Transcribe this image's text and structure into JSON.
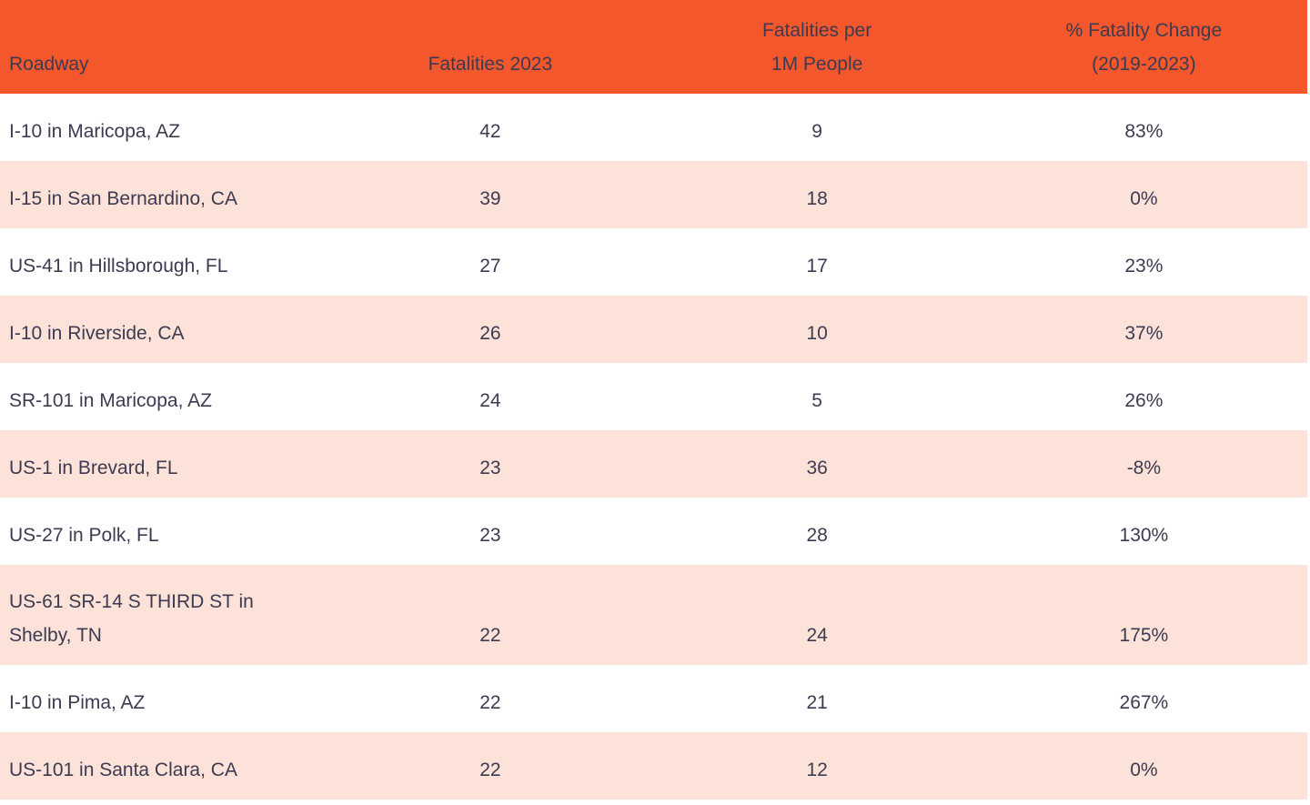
{
  "chart_data": {
    "type": "table",
    "title": "",
    "columns": [
      "Roadway",
      "Fatalities 2023",
      "Fatalities per 1M People",
      "% Fatality Change (2019-2023)"
    ],
    "rows": [
      [
        "I-10 in Maricopa, AZ",
        42,
        9,
        "83%"
      ],
      [
        "I-15 in San Bernardino, CA",
        39,
        18,
        "0%"
      ],
      [
        "US-41 in Hillsborough, FL",
        27,
        17,
        "23%"
      ],
      [
        "I-10 in Riverside, CA",
        26,
        10,
        "37%"
      ],
      [
        "SR-101 in Maricopa, AZ",
        24,
        5,
        "26%"
      ],
      [
        "US-1 in Brevard, FL",
        23,
        36,
        "-8%"
      ],
      [
        "US-27 in Polk, FL",
        23,
        28,
        "130%"
      ],
      [
        "US-61 SR-14 S THIRD ST in Shelby, TN",
        22,
        24,
        "175%"
      ],
      [
        "I-10 in Pima, AZ",
        22,
        21,
        "267%"
      ],
      [
        "US-101 in Santa Clara, CA",
        22,
        12,
        "0%"
      ]
    ],
    "layout": {
      "zebra_striping": true,
      "first_data_row_background": "white",
      "alternate_row_background": "light peach",
      "header_background": "orange"
    }
  },
  "table": {
    "columns": [
      {
        "id": "roadway",
        "lines": [
          "Roadway"
        ],
        "align": "left"
      },
      {
        "id": "fatalities_2023",
        "lines": [
          "Fatalities 2023"
        ],
        "align": "center"
      },
      {
        "id": "fatalities_per_1m",
        "lines": [
          "Fatalities per",
          "1M People"
        ],
        "align": "center"
      },
      {
        "id": "pct_change",
        "lines": [
          "% Fatality Change",
          "(2019-2023)"
        ],
        "align": "center"
      }
    ],
    "colors": {
      "header_bg": "#F4572B",
      "header_text": "#3C3B52",
      "row_bg": "#FFFFFF",
      "row_alt_bg": "#FCE2D8",
      "body_text": "#3C3B52"
    }
  }
}
